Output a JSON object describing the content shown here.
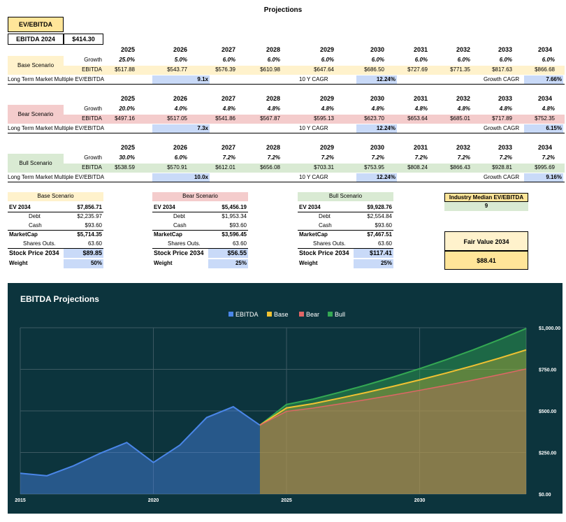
{
  "title": "Projections",
  "header": {
    "ev_ebitda_label": "EV/EBITDA",
    "ebitda_2024_label": "EBITDA 2024",
    "ebitda_2024_value": "$414.30"
  },
  "years": [
    "2025",
    "2026",
    "2027",
    "2028",
    "2029",
    "2030",
    "2031",
    "2032",
    "2033",
    "2034"
  ],
  "row_labels": {
    "growth": "Growth",
    "ebitda": "EBITDA",
    "ltm": "Long Term Market Multiple EV/EBITDA",
    "cagr10": "10 Y CAGR",
    "growth_cagr": "Growth CAGR"
  },
  "scenarios": [
    {
      "name": "Base Scenario",
      "growth": [
        "25.0%",
        "5.0%",
        "6.0%",
        "6.0%",
        "6.0%",
        "6.0%",
        "6.0%",
        "6.0%",
        "6.0%",
        "6.0%"
      ],
      "ebitda": [
        "$517.88",
        "$543.77",
        "$576.39",
        "$610.98",
        "$647.64",
        "$686.50",
        "$727.69",
        "$771.35",
        "$817.63",
        "$866.68"
      ],
      "multiple": "9.1x",
      "cagr10": "12.24%",
      "growth_cagr": "7.66%"
    },
    {
      "name": "Bear Scenario",
      "growth": [
        "20.0%",
        "4.0%",
        "4.8%",
        "4.8%",
        "4.8%",
        "4.8%",
        "4.8%",
        "4.8%",
        "4.8%",
        "4.8%"
      ],
      "ebitda": [
        "$497.16",
        "$517.05",
        "$541.86",
        "$567.87",
        "$595.13",
        "$623.70",
        "$653.64",
        "$685.01",
        "$717.89",
        "$752.35"
      ],
      "multiple": "7.3x",
      "cagr10": "12.24%",
      "growth_cagr": "6.15%"
    },
    {
      "name": "Bull Scenario",
      "growth": [
        "30.0%",
        "6.0%",
        "7.2%",
        "7.2%",
        "7.2%",
        "7.2%",
        "7.2%",
        "7.2%",
        "7.2%",
        "7.2%"
      ],
      "ebitda": [
        "$538.59",
        "$570.91",
        "$612.01",
        "$656.08",
        "$703.31",
        "$753.95",
        "$808.24",
        "$866.43",
        "$928.81",
        "$995.69"
      ],
      "multiple": "10.0x",
      "cagr10": "12.24%",
      "growth_cagr": "9.16%"
    }
  ],
  "valuation_labels": {
    "ev": "EV 2034",
    "debt": "Debt",
    "cash": "Cash",
    "marketcap": "MarketCap",
    "shares": "Shares Outs.",
    "price": "Stock Price 2034",
    "weight": "Weight"
  },
  "valuations": [
    {
      "name": "Base Scenario",
      "ev": "$7,856.71",
      "debt": "$2,235.97",
      "cash": "$93.60",
      "marketcap": "$5,714.35",
      "shares": "63.60",
      "price": "$89.85",
      "weight": "50%"
    },
    {
      "name": "Bear Scenario",
      "ev": "$5,456.19",
      "debt": "$1,953.34",
      "cash": "$93.60",
      "marketcap": "$3,596.45",
      "shares": "63.60",
      "price": "$56.55",
      "weight": "25%"
    },
    {
      "name": "Bull Scenario",
      "ev": "$9,928.76",
      "debt": "$2,554.84",
      "cash": "$93.60",
      "marketcap": "$7,467.51",
      "shares": "63.60",
      "price": "$117.41",
      "weight": "25%"
    }
  ],
  "industry": {
    "label": "Industry Median EV/EBITDA",
    "value": "9"
  },
  "fair_value": {
    "label": "Fair Value 2034",
    "value": "$88.41"
  },
  "colors": {
    "base": "#fff2cc",
    "bear": "#f4cccc",
    "bull": "#d9ead3",
    "blue": "#c9daf8",
    "gold": "#ffe599",
    "chart_bg": "#0c343d",
    "ebitda_line": "#4a86e8",
    "base_line": "#f1c232",
    "bear_line": "#e06666",
    "bull_line": "#34a853"
  },
  "chart_data": {
    "type": "area",
    "title": "EBITDA Projections",
    "legend": [
      "EBITDA",
      "Base",
      "Bear",
      "Bull"
    ],
    "legend_position": "top",
    "x_ticks": [
      "2015",
      "2020",
      "2025",
      "2030"
    ],
    "y_ticks": [
      "$0.00",
      "$250.00",
      "$500.00",
      "$750.00",
      "$1,000.00"
    ],
    "xlim": [
      2015,
      2034
    ],
    "ylim": [
      0,
      1000
    ],
    "grid": true,
    "series": [
      {
        "name": "EBITDA",
        "x": [
          2015,
          2016,
          2017,
          2018,
          2019,
          2020,
          2021,
          2022,
          2023,
          2024
        ],
        "values": [
          125,
          110,
          170,
          245,
          310,
          190,
          295,
          460,
          525,
          414.3
        ]
      },
      {
        "name": "Base",
        "x": [
          2024,
          2025,
          2026,
          2027,
          2028,
          2029,
          2030,
          2031,
          2032,
          2033,
          2034
        ],
        "values": [
          414.3,
          517.88,
          543.77,
          576.39,
          610.98,
          647.64,
          686.5,
          727.69,
          771.35,
          817.63,
          866.68
        ]
      },
      {
        "name": "Bear",
        "x": [
          2024,
          2025,
          2026,
          2027,
          2028,
          2029,
          2030,
          2031,
          2032,
          2033,
          2034
        ],
        "values": [
          414.3,
          497.16,
          517.05,
          541.86,
          567.87,
          595.13,
          623.7,
          653.64,
          685.01,
          717.89,
          752.35
        ]
      },
      {
        "name": "Bull",
        "x": [
          2024,
          2025,
          2026,
          2027,
          2028,
          2029,
          2030,
          2031,
          2032,
          2033,
          2034
        ],
        "values": [
          414.3,
          538.59,
          570.91,
          612.01,
          656.08,
          703.31,
          753.95,
          808.24,
          866.43,
          928.81,
          995.69
        ]
      }
    ]
  }
}
